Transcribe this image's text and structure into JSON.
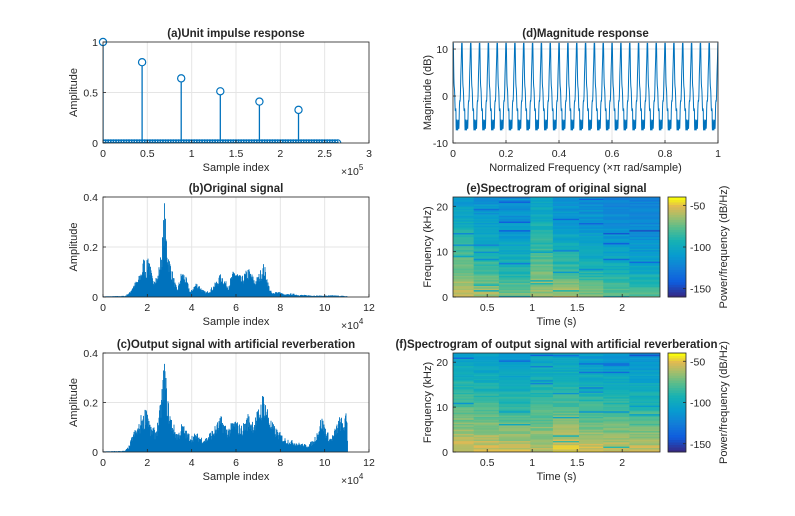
{
  "colors": {
    "line": "#0072BD",
    "axis": "#262626",
    "grid": "#E5E5E5"
  },
  "chart_data": [
    {
      "id": "a",
      "type": "stem",
      "title": "(a)Unit impulse response",
      "xlabel": "Sample index",
      "ylabel": "Amplitude",
      "xlim": [
        0,
        300000
      ],
      "ylim": [
        0,
        1
      ],
      "xticks": [
        0,
        50000,
        100000,
        150000,
        200000,
        250000,
        300000
      ],
      "xtick_labels": [
        "0",
        "0.5",
        "1",
        "1.5",
        "2",
        "2.5",
        "3"
      ],
      "x_exponent": "5",
      "yticks": [
        0,
        0.5,
        1
      ],
      "ytick_labels": [
        "0",
        "0.5",
        "1"
      ],
      "grid": true,
      "stems": [
        {
          "x": 0,
          "y": 1.0
        },
        {
          "x": 44100,
          "y": 0.8
        },
        {
          "x": 88200,
          "y": 0.64
        },
        {
          "x": 132300,
          "y": 0.512
        },
        {
          "x": 176400,
          "y": 0.41
        },
        {
          "x": 220500,
          "y": 0.328
        }
      ],
      "zero_samples_end": 264600
    },
    {
      "id": "d",
      "type": "line",
      "title": "(d)Magnitude response",
      "xlabel": "Normalized Frequency (×π rad/sample)",
      "ylabel": "Magnitude (dB)",
      "xlim": [
        0,
        1
      ],
      "ylim": [
        -10,
        11.5
      ],
      "xticks": [
        0,
        0.2,
        0.4,
        0.6,
        0.8,
        1
      ],
      "xtick_labels": [
        "0",
        "0.2",
        "0.4",
        "0.6",
        "0.8",
        "1"
      ],
      "yticks": [
        -10,
        0,
        10
      ],
      "ytick_labels": [
        "-10",
        "0",
        "10"
      ],
      "grid": true,
      "comb_teeth": 30,
      "max_db": 11.2,
      "min_db": -7.2,
      "ripple_db_range": [
        -7.2,
        -3.5
      ]
    },
    {
      "id": "b",
      "type": "area",
      "title": "(b)Original signal",
      "xlabel": "Sample index",
      "ylabel": "Amplitude",
      "xlim": [
        0,
        120000
      ],
      "ylim": [
        0,
        0.4
      ],
      "xticks": [
        0,
        20000,
        40000,
        60000,
        80000,
        100000,
        120000
      ],
      "xtick_labels": [
        "0",
        "2",
        "4",
        "6",
        "8",
        "10",
        "12"
      ],
      "x_exponent": "4",
      "yticks": [
        0,
        0.2,
        0.4
      ],
      "ytick_labels": [
        "0",
        "0.2",
        "0.4"
      ],
      "grid": true,
      "envelope": [
        [
          0,
          0.003
        ],
        [
          10000,
          0.005
        ],
        [
          12000,
          0.02
        ],
        [
          13500,
          0.05
        ],
        [
          14500,
          0.06
        ],
        [
          16000,
          0.08
        ],
        [
          17500,
          0.12
        ],
        [
          18500,
          0.17
        ],
        [
          19500,
          0.12
        ],
        [
          20500,
          0.2
        ],
        [
          21500,
          0.12
        ],
        [
          22500,
          0.07
        ],
        [
          23500,
          0.1
        ],
        [
          24500,
          0.08
        ],
        [
          25500,
          0.14
        ],
        [
          26500,
          0.2
        ],
        [
          27200,
          0.3
        ],
        [
          27700,
          0.4
        ],
        [
          28300,
          0.3
        ],
        [
          29000,
          0.22
        ],
        [
          30000,
          0.16
        ],
        [
          31000,
          0.12
        ],
        [
          32500,
          0.06
        ],
        [
          33500,
          0.03
        ],
        [
          34500,
          0.07
        ],
        [
          35500,
          0.11
        ],
        [
          36500,
          0.1
        ],
        [
          37500,
          0.08
        ],
        [
          38500,
          0.05
        ],
        [
          39500,
          0.02
        ],
        [
          40500,
          0.04
        ],
        [
          42000,
          0.06
        ],
        [
          43500,
          0.05
        ],
        [
          45000,
          0.03
        ],
        [
          46500,
          0.02
        ],
        [
          48000,
          0.03
        ],
        [
          50000,
          0.05
        ],
        [
          52000,
          0.08
        ],
        [
          53500,
          0.1
        ],
        [
          55000,
          0.07
        ],
        [
          56500,
          0.05
        ],
        [
          58000,
          0.09
        ],
        [
          59500,
          0.12
        ],
        [
          61000,
          0.1
        ],
        [
          62500,
          0.08
        ],
        [
          64000,
          0.1
        ],
        [
          65500,
          0.12
        ],
        [
          67000,
          0.1
        ],
        [
          68500,
          0.07
        ],
        [
          70000,
          0.09
        ],
        [
          71500,
          0.12
        ],
        [
          72500,
          0.14
        ],
        [
          73500,
          0.11
        ],
        [
          74500,
          0.06
        ],
        [
          75500,
          0.03
        ],
        [
          76500,
          0.015
        ],
        [
          78000,
          0.025
        ],
        [
          80000,
          0.02
        ],
        [
          82000,
          0.01
        ],
        [
          85000,
          0.015
        ],
        [
          88000,
          0.01
        ],
        [
          92000,
          0.008
        ],
        [
          98000,
          0.006
        ],
        [
          104000,
          0.007
        ],
        [
          110000,
          0.004
        ],
        [
          110500,
          0
        ]
      ]
    },
    {
      "id": "e",
      "type": "heatmap",
      "title": "(e)Spectrogram of original signal",
      "xlabel": "Time (s)",
      "ylabel": "Frequency (kHz)",
      "xlim": [
        0.12,
        2.42
      ],
      "ylim": [
        0,
        22.05
      ],
      "xticks": [
        0.5,
        1,
        1.5,
        2
      ],
      "xtick_labels": [
        "0.5",
        "1",
        "1.5",
        "2"
      ],
      "yticks": [
        0,
        10,
        20
      ],
      "ytick_labels": [
        "0",
        "10",
        "20"
      ],
      "colorbar_label": "Power/frequency (dB/Hz)",
      "clim": [
        -160,
        -40
      ],
      "colorbar_ticks": [
        -50,
        -100,
        -150
      ],
      "colorbar_tick_labels": [
        "-50",
        "-100",
        "-150"
      ],
      "segment_edges": [
        0.12,
        0.35,
        0.63,
        0.98,
        1.23,
        1.52,
        1.79,
        2.08,
        2.42
      ],
      "segment_levels": [
        [
          -55,
          -70,
          -85,
          -98,
          -110
        ],
        [
          -60,
          -82,
          -95,
          -108,
          -115
        ],
        [
          -68,
          -90,
          -102,
          -112,
          -118
        ],
        [
          -62,
          -72,
          -85,
          -95,
          -105
        ],
        [
          -58,
          -82,
          -98,
          -110,
          -118
        ],
        [
          -66,
          -90,
          -104,
          -113,
          -118
        ],
        [
          -70,
          -95,
          -108,
          -116,
          -122
        ],
        [
          -78,
          -100,
          -112,
          -120,
          -125
        ]
      ]
    },
    {
      "id": "c",
      "type": "area",
      "title": "(c)Output signal with artificial reverberation",
      "xlabel": "Sample index",
      "ylabel": "Amplitude",
      "xlim": [
        0,
        120000
      ],
      "ylim": [
        0,
        0.4
      ],
      "xticks": [
        0,
        20000,
        40000,
        60000,
        80000,
        100000,
        120000
      ],
      "xtick_labels": [
        "0",
        "2",
        "4",
        "6",
        "8",
        "10",
        "12"
      ],
      "x_exponent": "4",
      "yticks": [
        0,
        0.2,
        0.4
      ],
      "ytick_labels": [
        "0",
        "0.2",
        "0.4"
      ],
      "grid": true,
      "envelope": [
        [
          0,
          0.003
        ],
        [
          10000,
          0.005
        ],
        [
          12000,
          0.03
        ],
        [
          13500,
          0.08
        ],
        [
          15000,
          0.1
        ],
        [
          16500,
          0.12
        ],
        [
          17500,
          0.17
        ],
        [
          18500,
          0.15
        ],
        [
          19500,
          0.22
        ],
        [
          20500,
          0.16
        ],
        [
          21500,
          0.1
        ],
        [
          22500,
          0.11
        ],
        [
          23500,
          0.09
        ],
        [
          24500,
          0.12
        ],
        [
          25500,
          0.17
        ],
        [
          26500,
          0.26
        ],
        [
          27200,
          0.33
        ],
        [
          27700,
          0.4
        ],
        [
          28300,
          0.32
        ],
        [
          29000,
          0.24
        ],
        [
          30000,
          0.18
        ],
        [
          31000,
          0.14
        ],
        [
          32500,
          0.1
        ],
        [
          33500,
          0.08
        ],
        [
          34500,
          0.09
        ],
        [
          35500,
          0.12
        ],
        [
          36500,
          0.11
        ],
        [
          37500,
          0.09
        ],
        [
          38500,
          0.08
        ],
        [
          40000,
          0.07
        ],
        [
          42000,
          0.08
        ],
        [
          43500,
          0.07
        ],
        [
          45000,
          0.06
        ],
        [
          46500,
          0.06
        ],
        [
          48000,
          0.08
        ],
        [
          50000,
          0.1
        ],
        [
          52000,
          0.13
        ],
        [
          53500,
          0.15
        ],
        [
          55000,
          0.12
        ],
        [
          56500,
          0.1
        ],
        [
          58000,
          0.12
        ],
        [
          59500,
          0.14
        ],
        [
          61000,
          0.12
        ],
        [
          62500,
          0.11
        ],
        [
          64000,
          0.13
        ],
        [
          65500,
          0.16
        ],
        [
          67000,
          0.14
        ],
        [
          68500,
          0.14
        ],
        [
          70000,
          0.18
        ],
        [
          71500,
          0.22
        ],
        [
          72500,
          0.26
        ],
        [
          73500,
          0.21
        ],
        [
          74500,
          0.18
        ],
        [
          75500,
          0.14
        ],
        [
          76500,
          0.12
        ],
        [
          78000,
          0.1
        ],
        [
          80000,
          0.08
        ],
        [
          82000,
          0.06
        ],
        [
          85000,
          0.05
        ],
        [
          88000,
          0.04
        ],
        [
          92000,
          0.03
        ],
        [
          95000,
          0.05
        ],
        [
          97000,
          0.1
        ],
        [
          98500,
          0.15
        ],
        [
          99500,
          0.13
        ],
        [
          101000,
          0.09
        ],
        [
          102500,
          0.06
        ],
        [
          104000,
          0.08
        ],
        [
          105500,
          0.12
        ],
        [
          107000,
          0.15
        ],
        [
          108500,
          0.13
        ],
        [
          110000,
          0.17
        ],
        [
          110500,
          0
        ]
      ]
    },
    {
      "id": "f",
      "type": "heatmap",
      "title": "(f)Spectrogram of output signal with artificial reverberation",
      "xlabel": "Time (s)",
      "ylabel": "Frequency (kHz)",
      "xlim": [
        0.12,
        2.42
      ],
      "ylim": [
        0,
        22.05
      ],
      "xticks": [
        0.5,
        1,
        1.5,
        2
      ],
      "xtick_labels": [
        "0.5",
        "1",
        "1.5",
        "2"
      ],
      "yticks": [
        0,
        10,
        20
      ],
      "ytick_labels": [
        "0",
        "10",
        "20"
      ],
      "colorbar_label": "Power/frequency (dB/Hz)",
      "clim": [
        -160,
        -40
      ],
      "colorbar_ticks": [
        -50,
        -100,
        -150
      ],
      "colorbar_tick_labels": [
        "-50",
        "-100",
        "-150"
      ],
      "segment_edges": [
        0.12,
        0.35,
        0.63,
        0.98,
        1.23,
        1.52,
        1.79,
        2.08,
        2.42
      ],
      "segment_levels": [
        [
          -52,
          -66,
          -80,
          -94,
          -106
        ],
        [
          -50,
          -68,
          -84,
          -98,
          -108
        ],
        [
          -54,
          -72,
          -88,
          -100,
          -110
        ],
        [
          -56,
          -70,
          -84,
          -96,
          -106
        ],
        [
          -48,
          -66,
          -82,
          -96,
          -106
        ],
        [
          -50,
          -70,
          -86,
          -100,
          -110
        ],
        [
          -52,
          -72,
          -88,
          -102,
          -112
        ],
        [
          -54,
          -74,
          -90,
          -104,
          -114
        ]
      ]
    }
  ]
}
